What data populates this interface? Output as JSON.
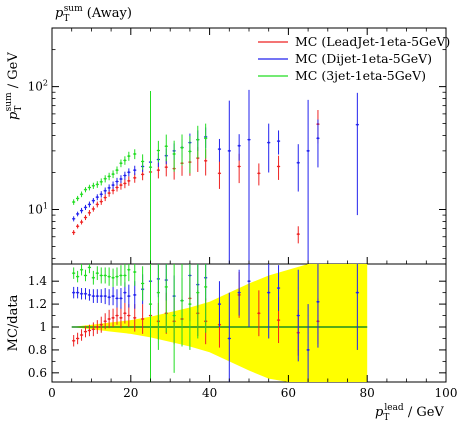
{
  "chart_data": {
    "type": "scatter",
    "title": "p_T^sum (Away)",
    "title_main": "p",
    "title_sub": "T",
    "title_sup": "sum",
    "title_rest": " (Away)",
    "ylabel_main": "p",
    "ylabel_sub": "T",
    "ylabel_sup": "sum",
    "ylabel_rest": " / GeV",
    "xlabel_main": "p",
    "xlabel_sub": "T",
    "xlabel_sup": "lead",
    "xlabel_rest": " / GeV",
    "ratio_ylabel": "MC/data",
    "xlim": [
      0,
      100
    ],
    "ylim": [
      3.6,
      300
    ],
    "yscale": "log",
    "ratio_ylim": [
      0.52,
      1.55
    ],
    "x_ticks": [
      0,
      20,
      40,
      60,
      80,
      100
    ],
    "x_ticklabels": [
      "0",
      "20",
      "40",
      "60",
      "80",
      "100"
    ],
    "y_ticks": [
      10,
      100
    ],
    "y_ticklabels": [
      "10^1",
      "10^2"
    ],
    "ratio_y_ticks": [
      0.6,
      0.8,
      1,
      1.2,
      1.4
    ],
    "ratio_y_ticklabels": [
      "0.6",
      "0.8",
      "1",
      "1.2",
      "1.4"
    ],
    "legend_position": "top-right",
    "series": [
      {
        "name": "MC (LeadJet-1eta-5GeV)",
        "color": "#ee2222",
        "points": [
          [
            5.5,
            6.5,
            0.3
          ],
          [
            6.5,
            7.3,
            0.3
          ],
          [
            7.5,
            7.9,
            0.35
          ],
          [
            8.5,
            8.6,
            0.4
          ],
          [
            9.5,
            9.4,
            0.5
          ],
          [
            10.5,
            10.1,
            0.5
          ],
          [
            11.5,
            11.0,
            0.6
          ],
          [
            12.5,
            11.6,
            0.7
          ],
          [
            13.5,
            12.5,
            0.8
          ],
          [
            14.5,
            13.6,
            0.9
          ],
          [
            15.5,
            14.3,
            1.0
          ],
          [
            16.5,
            15.1,
            1.1
          ],
          [
            17.5,
            15.8,
            1.3
          ],
          [
            18.5,
            16.3,
            1.4
          ],
          [
            19.5,
            17.1,
            1.5
          ],
          [
            21,
            18.1,
            1.6
          ],
          [
            23,
            19.3,
            2.0
          ],
          [
            25,
            20.2,
            2.4
          ],
          [
            27,
            20.9,
            3.0
          ],
          [
            29,
            22.1,
            3.5
          ],
          [
            31,
            21.5,
            4.0
          ],
          [
            33,
            23.8,
            5.0
          ],
          [
            35,
            24.3,
            5.5
          ],
          [
            37,
            26.2,
            6.0
          ],
          [
            39,
            24.9,
            6.0
          ],
          [
            42.5,
            19.7,
            5.0
          ],
          [
            47.5,
            22.4,
            6.0
          ],
          [
            52.5,
            19.7,
            4.0
          ],
          [
            57.5,
            22.4,
            5.0
          ],
          [
            62.5,
            6.3,
            1.0
          ],
          [
            67.5,
            49.5,
            15.0
          ]
        ],
        "ratio": [
          [
            5.5,
            0.88,
            0.05
          ],
          [
            6.5,
            0.9,
            0.05
          ],
          [
            7.5,
            0.93,
            0.05
          ],
          [
            8.5,
            0.96,
            0.05
          ],
          [
            9.5,
            0.97,
            0.05
          ],
          [
            10.5,
            0.98,
            0.06
          ],
          [
            11.5,
            1.0,
            0.06
          ],
          [
            12.5,
            1.02,
            0.07
          ],
          [
            13.5,
            1.05,
            0.07
          ],
          [
            14.5,
            1.07,
            0.08
          ],
          [
            15.5,
            1.08,
            0.08
          ],
          [
            16.5,
            1.1,
            0.08
          ],
          [
            17.5,
            1.08,
            0.09
          ],
          [
            18.5,
            1.12,
            0.09
          ],
          [
            19.5,
            1.1,
            0.1
          ],
          [
            21,
            1.08,
            0.12
          ],
          [
            23,
            1.07,
            0.13
          ],
          [
            25,
            1.1,
            0.15
          ],
          [
            27,
            1.05,
            0.16
          ],
          [
            29,
            1.12,
            0.18
          ],
          [
            31,
            1.05,
            0.2
          ],
          [
            33,
            1.07,
            0.2
          ],
          [
            35,
            1.25,
            0.2
          ],
          [
            37,
            1.12,
            0.2
          ],
          [
            39,
            1.05,
            0.2
          ],
          [
            42.5,
            1.02,
            0.2
          ],
          [
            47.5,
            1.28,
            0.2
          ],
          [
            52.5,
            1.12,
            0.2
          ],
          [
            57.5,
            1.06,
            0.2
          ],
          [
            62.5,
            0.95,
            0.2
          ],
          [
            67.5,
            1.05,
            0.2
          ]
        ]
      },
      {
        "name": "MC (Dijet-1eta-5GeV)",
        "color": "#2222ee",
        "points": [
          [
            5.5,
            8.4,
            0.4
          ],
          [
            6.5,
            9.2,
            0.4
          ],
          [
            7.5,
            9.8,
            0.5
          ],
          [
            8.5,
            10.4,
            0.5
          ],
          [
            9.5,
            11.0,
            0.6
          ],
          [
            10.5,
            11.8,
            0.6
          ],
          [
            11.5,
            12.6,
            0.7
          ],
          [
            12.5,
            13.3,
            0.8
          ],
          [
            13.5,
            14.2,
            0.9
          ],
          [
            14.5,
            15.0,
            1.0
          ],
          [
            15.5,
            15.8,
            1.1
          ],
          [
            16.5,
            16.9,
            1.2
          ],
          [
            17.5,
            17.7,
            1.3
          ],
          [
            18.5,
            18.9,
            1.4
          ],
          [
            19.5,
            20.1,
            1.5
          ],
          [
            21,
            20.9,
            1.8
          ],
          [
            23,
            22.4,
            2.2
          ],
          [
            25,
            24.3,
            2.8
          ],
          [
            27,
            25.5,
            3.3
          ],
          [
            29,
            27.4,
            4.0
          ],
          [
            31,
            30.0,
            4.5
          ],
          [
            33,
            32.0,
            5.5
          ],
          [
            35,
            35.0,
            6.5
          ],
          [
            37,
            37.0,
            7.0
          ],
          [
            39,
            39.0,
            7.5
          ],
          [
            42.5,
            31.0,
            6.5
          ],
          [
            45,
            30.0,
            47.0
          ],
          [
            47.5,
            33.0,
            8.0
          ],
          [
            50,
            37.0,
            57.0
          ],
          [
            55,
            35.0,
            15.0
          ],
          [
            57.5,
            36.0,
            8.0
          ],
          [
            62.5,
            24.0,
            10.0
          ],
          [
            65,
            30.0,
            48.0
          ],
          [
            67.5,
            38.0,
            16.0
          ],
          [
            77.5,
            49.0,
            40.0
          ]
        ],
        "ratio": [
          [
            5.5,
            1.3,
            0.05
          ],
          [
            6.5,
            1.3,
            0.05
          ],
          [
            7.5,
            1.29,
            0.05
          ],
          [
            8.5,
            1.29,
            0.05
          ],
          [
            9.5,
            1.28,
            0.05
          ],
          [
            10.5,
            1.27,
            0.06
          ],
          [
            11.5,
            1.27,
            0.06
          ],
          [
            12.5,
            1.27,
            0.06
          ],
          [
            13.5,
            1.27,
            0.07
          ],
          [
            14.5,
            1.26,
            0.07
          ],
          [
            15.5,
            1.27,
            0.08
          ],
          [
            16.5,
            1.25,
            0.08
          ],
          [
            17.5,
            1.25,
            0.09
          ],
          [
            18.5,
            1.3,
            0.09
          ],
          [
            19.5,
            1.27,
            0.1
          ],
          [
            21,
            1.28,
            0.12
          ],
          [
            23,
            1.33,
            0.13
          ],
          [
            25,
            1.4,
            0.15
          ],
          [
            27,
            1.42,
            0.16
          ],
          [
            29,
            1.41,
            0.18
          ],
          [
            31,
            1.27,
            0.18
          ],
          [
            33,
            1.23,
            0.2
          ],
          [
            35,
            1.45,
            0.2
          ],
          [
            37,
            1.37,
            0.2
          ],
          [
            39,
            1.43,
            0.2
          ],
          [
            42.5,
            1.2,
            0.2
          ],
          [
            45,
            0.9,
            0.4
          ],
          [
            47.5,
            1.3,
            0.2
          ],
          [
            50,
            1.4,
            0.4
          ],
          [
            55,
            1.3,
            0.4
          ],
          [
            57.5,
            1.34,
            0.2
          ],
          [
            62.5,
            1.1,
            0.4
          ],
          [
            65,
            0.8,
            0.4
          ],
          [
            67.5,
            1.22,
            0.4
          ],
          [
            77.5,
            1.3,
            0.5
          ]
        ]
      },
      {
        "name": "MC (3jet-1eta-5GeV)",
        "color": "#22dd22",
        "points": [
          [
            5.5,
            11.5,
            0.6
          ],
          [
            6.5,
            12.3,
            0.6
          ],
          [
            7.5,
            13.3,
            0.7
          ],
          [
            8.5,
            14.5,
            0.7
          ],
          [
            9.5,
            15.1,
            0.8
          ],
          [
            10.5,
            15.6,
            0.9
          ],
          [
            11.5,
            16.0,
            1.0
          ],
          [
            12.5,
            16.8,
            1.1
          ],
          [
            13.5,
            17.8,
            1.2
          ],
          [
            14.5,
            18.6,
            1.3
          ],
          [
            15.5,
            19.4,
            1.4
          ],
          [
            16.5,
            20.9,
            1.5
          ],
          [
            17.5,
            23.8,
            1.7
          ],
          [
            18.5,
            25.1,
            2.0
          ],
          [
            19.5,
            27.2,
            2.3
          ],
          [
            21,
            28.3,
            2.6
          ],
          [
            23,
            24.6,
            3.5
          ],
          [
            25,
            22.1,
            70.0
          ],
          [
            27,
            30.2,
            6.0
          ],
          [
            29,
            32.7,
            8.0
          ],
          [
            31,
            28.3,
            8.0
          ],
          [
            33,
            31.8,
            9.0
          ],
          [
            35,
            29.7,
            10.0
          ],
          [
            37,
            37.0,
            11.0
          ],
          [
            39,
            38.0,
            12.0
          ]
        ],
        "ratio": [
          [
            5.5,
            1.47,
            0.05
          ],
          [
            6.5,
            1.44,
            0.05
          ],
          [
            7.5,
            1.5,
            0.05
          ],
          [
            8.5,
            1.45,
            0.05
          ],
          [
            9.5,
            1.52,
            0.05
          ],
          [
            10.5,
            1.43,
            0.06
          ],
          [
            11.5,
            1.47,
            0.06
          ],
          [
            12.5,
            1.45,
            0.07
          ],
          [
            13.5,
            1.45,
            0.07
          ],
          [
            14.5,
            1.44,
            0.08
          ],
          [
            15.5,
            1.43,
            0.08
          ],
          [
            16.5,
            1.44,
            0.08
          ],
          [
            17.5,
            1.45,
            0.09
          ],
          [
            18.5,
            1.45,
            0.1
          ],
          [
            19.5,
            1.5,
            0.1
          ],
          [
            21,
            1.48,
            0.12
          ],
          [
            23,
            1.38,
            0.15
          ],
          [
            25,
            1.2,
            0.7
          ],
          [
            27,
            1.3,
            0.5
          ],
          [
            29,
            1.35,
            0.4
          ],
          [
            31,
            1.1,
            0.5
          ],
          [
            33,
            1.23,
            0.4
          ],
          [
            35,
            1.2,
            0.4
          ],
          [
            37,
            1.3,
            0.4
          ],
          [
            39,
            1.35,
            0.4
          ]
        ]
      }
    ],
    "data_band": {
      "color": "#ffff00",
      "x": [
        5,
        10,
        15,
        20,
        25,
        30,
        35,
        40,
        45,
        50,
        55,
        60,
        65,
        70,
        75,
        80
      ],
      "halfwidth": [
        0.0,
        0.02,
        0.04,
        0.06,
        0.09,
        0.13,
        0.17,
        0.22,
        0.3,
        0.38,
        0.45,
        0.5,
        0.6,
        0.7,
        0.7,
        0.7
      ]
    },
    "ratio_reference_line": 1
  }
}
